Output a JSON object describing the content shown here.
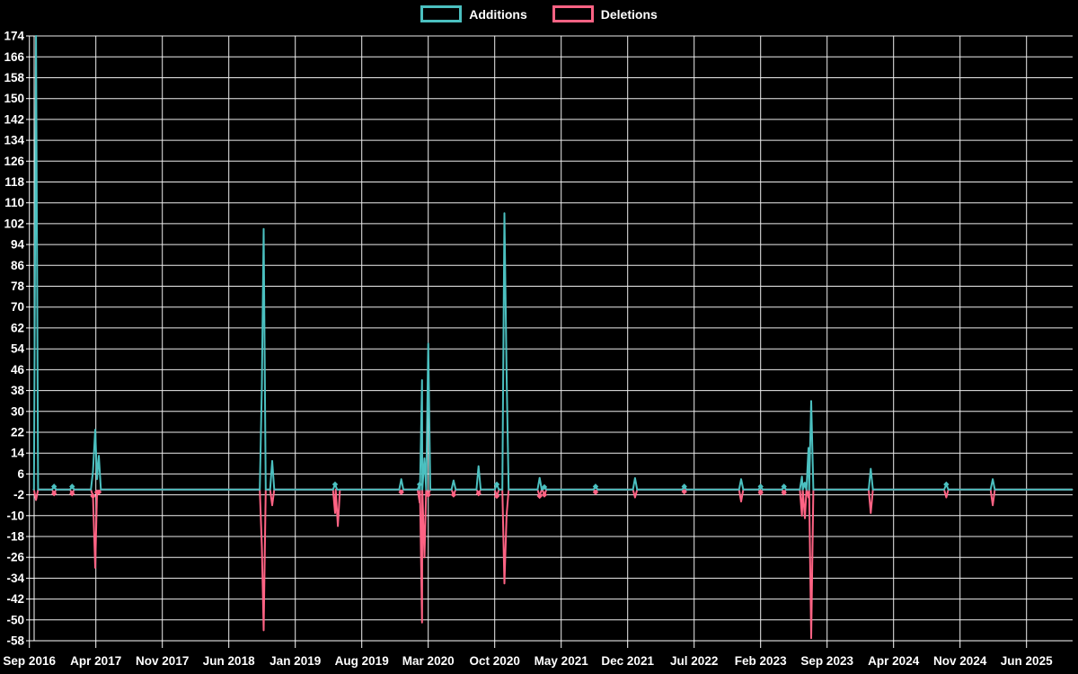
{
  "legend": {
    "items": [
      {
        "label": "Additions",
        "color": "#4bc0c0"
      },
      {
        "label": "Deletions",
        "color": "#ff6384"
      }
    ]
  },
  "chart_data": {
    "type": "line",
    "title": "",
    "background_color": "#000000",
    "grid_color": "#ededed",
    "text_color": "#ffffff",
    "grid": true,
    "legend_position": "top",
    "x_axis": {
      "start": "Sep 2016",
      "end": "Jun 2025",
      "months_per_tick": 7,
      "tick_labels": [
        "Sep 2016",
        "Apr 2017",
        "Nov 2017",
        "Jun 2018",
        "Jan 2019",
        "Aug 2019",
        "Mar 2020",
        "Oct 2020",
        "May 2021",
        "Dec 2021",
        "Jul 2022",
        "Feb 2023",
        "Sep 2023",
        "Apr 2024",
        "Nov 2024",
        "Jun 2025"
      ]
    },
    "y_axis": {
      "min": -58,
      "max": 174,
      "step": 8,
      "tick_labels": [
        174,
        166,
        158,
        150,
        142,
        134,
        126,
        118,
        110,
        102,
        94,
        86,
        78,
        70,
        62,
        54,
        46,
        38,
        30,
        22,
        14,
        6,
        -2,
        -10,
        -18,
        -26,
        -34,
        -42,
        -50,
        -58
      ]
    },
    "baseline_value": 0,
    "series": [
      {
        "name": "Additions",
        "color": "#4bc0c0",
        "events": [
          {
            "m": 0.7,
            "v": 174,
            "approx_date": "Sep 2016"
          },
          {
            "m": 2.6,
            "v": 1.2,
            "approx_date": "Nov 2016"
          },
          {
            "m": 4.5,
            "v": 1.2,
            "approx_date": "Jan 2017"
          },
          {
            "m": 6.7,
            "v": 7,
            "approx_date": "Mar 2017"
          },
          {
            "m": 6.93,
            "v": 23,
            "approx_date": "Apr 2017"
          },
          {
            "m": 7.12,
            "v": 4,
            "approx_date": "Apr 2017"
          },
          {
            "m": 7.31,
            "v": 13,
            "approx_date": "Apr 2017"
          },
          {
            "m": 24.48,
            "v": 40,
            "approx_date": "Sep 2018"
          },
          {
            "m": 24.67,
            "v": 100,
            "approx_date": "Oct 2018"
          },
          {
            "m": 25.57,
            "v": 11,
            "approx_date": "Oct 2018"
          },
          {
            "m": 32.19,
            "v": 2,
            "approx_date": "May 2019"
          },
          {
            "m": 39.16,
            "v": 4,
            "approx_date": "Dec 2019"
          },
          {
            "m": 41.1,
            "v": 2,
            "approx_date": "Feb 2020"
          },
          {
            "m": 41.35,
            "v": 42,
            "approx_date": "Feb 2020"
          },
          {
            "m": 41.6,
            "v": 12,
            "approx_date": "Feb 2020"
          },
          {
            "m": 42.0,
            "v": 56,
            "approx_date": "Mar 2020"
          },
          {
            "m": 44.67,
            "v": 3.5,
            "approx_date": "May 2020"
          },
          {
            "m": 47.3,
            "v": 9,
            "approx_date": "Aug 2020"
          },
          {
            "m": 49.22,
            "v": 2,
            "approx_date": "Oct 2020"
          },
          {
            "m": 50.02,
            "v": 106,
            "approx_date": "Nov 2020"
          },
          {
            "m": 50.25,
            "v": 45,
            "approx_date": "Nov 2020"
          },
          {
            "m": 53.73,
            "v": 4.5,
            "approx_date": "Feb 2021"
          },
          {
            "m": 54.23,
            "v": 1,
            "approx_date": "Mar 2021"
          },
          {
            "m": 59.62,
            "v": 1.2,
            "approx_date": "Aug 2021"
          },
          {
            "m": 63.78,
            "v": 4.4,
            "approx_date": "Dec 2021"
          },
          {
            "m": 68.96,
            "v": 1.2,
            "approx_date": "May 2022"
          },
          {
            "m": 74.95,
            "v": 4,
            "approx_date": "Nov 2022"
          },
          {
            "m": 77.0,
            "v": 1.2,
            "approx_date": "Feb 2023"
          },
          {
            "m": 79.46,
            "v": 1.2,
            "approx_date": "Apr 2023"
          },
          {
            "m": 81.35,
            "v": 5,
            "approx_date": "Jun 2023"
          },
          {
            "m": 81.66,
            "v": 2,
            "approx_date": "Jun 2023"
          },
          {
            "m": 82.04,
            "v": 16,
            "approx_date": "Jul 2023"
          },
          {
            "m": 82.33,
            "v": 34,
            "approx_date": "Jul 2023"
          },
          {
            "m": 88.6,
            "v": 8,
            "approx_date": "Feb 2024"
          },
          {
            "m": 96.55,
            "v": 2,
            "approx_date": "Sep 2024"
          },
          {
            "m": 101.44,
            "v": 4,
            "approx_date": "Feb 2025"
          }
        ]
      },
      {
        "name": "Deletions",
        "color": "#ff6384",
        "events": [
          {
            "m": 0.7,
            "v": -4,
            "approx_date": "Sep 2016"
          },
          {
            "m": 2.6,
            "v": -1.5,
            "approx_date": "Nov 2016"
          },
          {
            "m": 4.5,
            "v": -1.5,
            "approx_date": "Jan 2017"
          },
          {
            "m": 6.7,
            "v": -2.5,
            "approx_date": "Mar 2017"
          },
          {
            "m": 6.93,
            "v": -30,
            "approx_date": "Apr 2017"
          },
          {
            "m": 7.12,
            "v": -1,
            "approx_date": "Apr 2017"
          },
          {
            "m": 7.31,
            "v": -1,
            "approx_date": "Apr 2017"
          },
          {
            "m": 24.48,
            "v": -22,
            "approx_date": "Sep 2018"
          },
          {
            "m": 24.67,
            "v": -54,
            "approx_date": "Oct 2018"
          },
          {
            "m": 25.57,
            "v": -6,
            "approx_date": "Oct 2018"
          },
          {
            "m": 32.19,
            "v": -9,
            "approx_date": "May 2019"
          },
          {
            "m": 32.48,
            "v": -14,
            "approx_date": "May 2019"
          },
          {
            "m": 39.16,
            "v": -1,
            "approx_date": "Dec 2019"
          },
          {
            "m": 41.1,
            "v": -5,
            "approx_date": "Feb 2020"
          },
          {
            "m": 41.35,
            "v": -51,
            "approx_date": "Feb 2020"
          },
          {
            "m": 41.6,
            "v": -26,
            "approx_date": "Feb 2020"
          },
          {
            "m": 42.0,
            "v": -2,
            "approx_date": "Mar 2020"
          },
          {
            "m": 44.67,
            "v": -2,
            "approx_date": "May 2020"
          },
          {
            "m": 47.3,
            "v": -1.5,
            "approx_date": "Aug 2020"
          },
          {
            "m": 49.22,
            "v": -2.5,
            "approx_date": "Oct 2020"
          },
          {
            "m": 50.02,
            "v": -36,
            "approx_date": "Nov 2020"
          },
          {
            "m": 50.25,
            "v": -10,
            "approx_date": "Nov 2020"
          },
          {
            "m": 53.73,
            "v": -2.5,
            "approx_date": "Feb 2021"
          },
          {
            "m": 54.23,
            "v": -2,
            "approx_date": "Mar 2021"
          },
          {
            "m": 59.62,
            "v": -1,
            "approx_date": "Aug 2021"
          },
          {
            "m": 63.78,
            "v": -3,
            "approx_date": "Dec 2021"
          },
          {
            "m": 68.96,
            "v": -0.8,
            "approx_date": "May 2022"
          },
          {
            "m": 74.95,
            "v": -4.6,
            "approx_date": "Nov 2022"
          },
          {
            "m": 77.0,
            "v": -1.2,
            "approx_date": "Feb 2023"
          },
          {
            "m": 79.46,
            "v": -1.2,
            "approx_date": "Apr 2023"
          },
          {
            "m": 81.35,
            "v": -10,
            "approx_date": "Jun 2023"
          },
          {
            "m": 81.66,
            "v": -11,
            "approx_date": "Jun 2023"
          },
          {
            "m": 82.04,
            "v": -3,
            "approx_date": "Jul 2023"
          },
          {
            "m": 82.33,
            "v": -57,
            "approx_date": "Jul 2023"
          },
          {
            "m": 88.6,
            "v": -9,
            "approx_date": "Feb 2024"
          },
          {
            "m": 96.55,
            "v": -3,
            "approx_date": "Sep 2024"
          },
          {
            "m": 101.44,
            "v": -6,
            "approx_date": "Feb 2025"
          }
        ]
      }
    ]
  }
}
